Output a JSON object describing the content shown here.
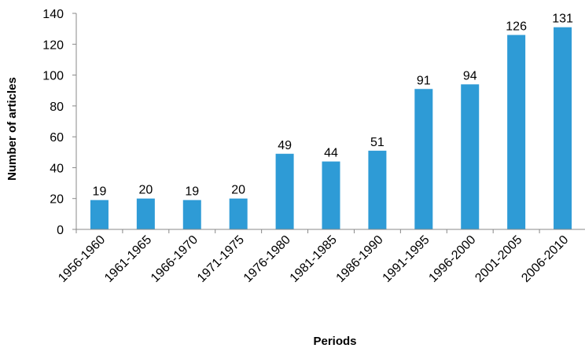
{
  "chart_data": {
    "type": "bar",
    "title": "",
    "xlabel": "Periods",
    "ylabel": "Number of articles",
    "categories": [
      "1956-1960",
      "1961-1965",
      "1966-1970",
      "1971-1975",
      "1976-1980",
      "1981-1985",
      "1986-1990",
      "1991-1995",
      "1996-2000",
      "2001-2005",
      "2006-2010"
    ],
    "values": [
      19,
      20,
      19,
      20,
      49,
      44,
      51,
      91,
      94,
      126,
      131
    ],
    "ylim": [
      0,
      140
    ],
    "yticks": [
      0,
      20,
      40,
      60,
      80,
      100,
      120,
      140
    ],
    "grid": false,
    "legend": "none",
    "bar_color": "#2e9bd6",
    "axis_color": "#888888"
  }
}
